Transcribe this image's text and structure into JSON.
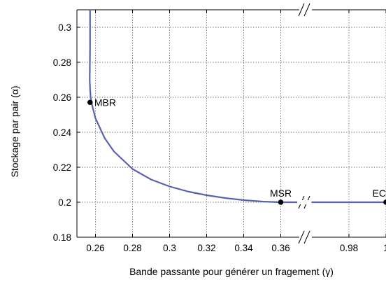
{
  "chart_data": {
    "type": "line",
    "title": "",
    "xlabel": "Bande passante pour générer un fragement (γ)",
    "ylabel": "Stockage par pair (α)",
    "x_axis_broken": true,
    "x_segments": [
      {
        "xlim": [
          0.25,
          0.37
        ],
        "ticks": [
          0.26,
          0.28,
          0.3,
          0.32,
          0.34,
          0.36
        ],
        "tick_labels": [
          "0.26",
          "0.28",
          "0.3",
          "0.32",
          "0.34",
          "0.36"
        ]
      },
      {
        "xlim": [
          0.96,
          1.0
        ],
        "ticks": [
          0.98,
          1.0
        ],
        "tick_labels": [
          "0.98",
          "1"
        ]
      }
    ],
    "ylim": [
      0.18,
      0.31
    ],
    "yticks": [
      0.18,
      0.2,
      0.22,
      0.24,
      0.26,
      0.28,
      0.3
    ],
    "ytick_labels": [
      "0.18",
      "0.2",
      "0.22",
      "0.24",
      "0.26",
      "0.28",
      "0.3"
    ],
    "grid": true,
    "series": [
      {
        "color": "#5a62b0",
        "points": [
          [
            0.2571,
            0.31
          ],
          [
            0.2571,
            0.29
          ],
          [
            0.257,
            0.28
          ],
          [
            0.2569,
            0.27
          ],
          [
            0.2571,
            0.265
          ],
          [
            0.2574,
            0.26
          ],
          [
            0.2578,
            0.2571
          ],
          [
            0.26,
            0.248
          ],
          [
            0.265,
            0.2366
          ],
          [
            0.27,
            0.229
          ],
          [
            0.28,
            0.219
          ],
          [
            0.29,
            0.213
          ],
          [
            0.3,
            0.209
          ],
          [
            0.31,
            0.2061
          ],
          [
            0.32,
            0.204
          ],
          [
            0.33,
            0.2024
          ],
          [
            0.34,
            0.2012
          ],
          [
            0.35,
            0.2004
          ],
          [
            0.36,
            0.2
          ],
          [
            0.37,
            0.2
          ],
          [
            0.96,
            0.2
          ],
          [
            1.0,
            0.2
          ]
        ]
      }
    ],
    "annotations": [
      {
        "label": "MBR",
        "x": 0.2571,
        "y": 0.2571
      },
      {
        "label": "MSR",
        "x": 0.36,
        "y": 0.2
      },
      {
        "label": "EC",
        "x": 1.0,
        "y": 0.2
      }
    ],
    "colors": {
      "line": "#5a62b0",
      "marker": "#000000",
      "grid": "#555555"
    }
  }
}
